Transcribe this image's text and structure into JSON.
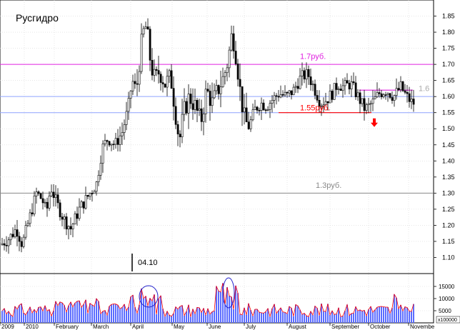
{
  "chart_data": [
    {
      "type": "candlestick",
      "title": "Русгидро",
      "ylim": [
        1.05,
        1.9
      ],
      "yticks": [
        "1.10",
        "1.15",
        "1.20",
        "1.25",
        "1.30",
        "1.35",
        "1.40",
        "1.45",
        "1.50",
        "1.55",
        "1.60",
        "1.65",
        "1.70",
        "1.75",
        "1.80",
        "1.85"
      ],
      "ytick_values": [
        1.1,
        1.15,
        1.2,
        1.25,
        1.3,
        1.35,
        1.4,
        1.45,
        1.5,
        1.55,
        1.6,
        1.65,
        1.7,
        1.75,
        1.8,
        1.85
      ],
      "grid": true,
      "price_path": [
        {
          "t": 0,
          "v": 1.14
        },
        {
          "t": 12,
          "v": 1.16
        },
        {
          "t": 22,
          "v": 1.19
        },
        {
          "t": 30,
          "v": 1.14
        },
        {
          "t": 40,
          "v": 1.22
        },
        {
          "t": 50,
          "v": 1.3
        },
        {
          "t": 58,
          "v": 1.28
        },
        {
          "t": 64,
          "v": 1.24
        },
        {
          "t": 70,
          "v": 1.32
        },
        {
          "t": 78,
          "v": 1.27
        },
        {
          "t": 88,
          "v": 1.22
        },
        {
          "t": 98,
          "v": 1.19
        },
        {
          "t": 110,
          "v": 1.25
        },
        {
          "t": 122,
          "v": 1.29
        },
        {
          "t": 134,
          "v": 1.33
        },
        {
          "t": 142,
          "v": 1.44
        },
        {
          "t": 150,
          "v": 1.47
        },
        {
          "t": 160,
          "v": 1.45
        },
        {
          "t": 170,
          "v": 1.49
        },
        {
          "t": 178,
          "v": 1.56
        },
        {
          "t": 184,
          "v": 1.65
        },
        {
          "t": 190,
          "v": 1.62
        },
        {
          "t": 196,
          "v": 1.75
        },
        {
          "t": 200,
          "v": 1.8
        },
        {
          "t": 204,
          "v": 1.82
        },
        {
          "t": 210,
          "v": 1.7
        },
        {
          "t": 216,
          "v": 1.65
        },
        {
          "t": 222,
          "v": 1.68
        },
        {
          "t": 230,
          "v": 1.64
        },
        {
          "t": 238,
          "v": 1.66
        },
        {
          "t": 244,
          "v": 1.56
        },
        {
          "t": 250,
          "v": 1.46
        },
        {
          "t": 256,
          "v": 1.55
        },
        {
          "t": 264,
          "v": 1.6
        },
        {
          "t": 272,
          "v": 1.57
        },
        {
          "t": 280,
          "v": 1.52
        },
        {
          "t": 288,
          "v": 1.62
        },
        {
          "t": 296,
          "v": 1.58
        },
        {
          "t": 304,
          "v": 1.62
        },
        {
          "t": 312,
          "v": 1.66
        },
        {
          "t": 318,
          "v": 1.71
        },
        {
          "t": 324,
          "v": 1.8
        },
        {
          "t": 330,
          "v": 1.72
        },
        {
          "t": 336,
          "v": 1.6
        },
        {
          "t": 342,
          "v": 1.52
        },
        {
          "t": 348,
          "v": 1.51
        },
        {
          "t": 356,
          "v": 1.56
        },
        {
          "t": 364,
          "v": 1.58
        },
        {
          "t": 372,
          "v": 1.57
        },
        {
          "t": 380,
          "v": 1.59
        },
        {
          "t": 390,
          "v": 1.61
        },
        {
          "t": 400,
          "v": 1.6
        },
        {
          "t": 410,
          "v": 1.62
        },
        {
          "t": 420,
          "v": 1.66
        },
        {
          "t": 430,
          "v": 1.67
        },
        {
          "t": 440,
          "v": 1.62
        },
        {
          "t": 448,
          "v": 1.58
        },
        {
          "t": 456,
          "v": 1.59
        },
        {
          "t": 464,
          "v": 1.61
        },
        {
          "t": 472,
          "v": 1.64
        },
        {
          "t": 480,
          "v": 1.63
        },
        {
          "t": 490,
          "v": 1.64
        },
        {
          "t": 500,
          "v": 1.6
        },
        {
          "t": 510,
          "v": 1.56
        },
        {
          "t": 520,
          "v": 1.58
        },
        {
          "t": 530,
          "v": 1.61
        },
        {
          "t": 540,
          "v": 1.62
        },
        {
          "t": 550,
          "v": 1.6
        },
        {
          "t": 560,
          "v": 1.63
        },
        {
          "t": 568,
          "v": 1.6
        },
        {
          "t": 576,
          "v": 1.58
        }
      ],
      "hlines": [
        {
          "y": 1.7,
          "color": "#e020e0",
          "style": "solid"
        },
        {
          "y": 1.6,
          "color": "#8fa4ff",
          "style": "solid"
        },
        {
          "y": 1.55,
          "color": "#8fa4ff",
          "style": "solid"
        },
        {
          "y": 1.3,
          "color": "#888888",
          "style": "solid"
        }
      ],
      "segments": [
        {
          "y": 1.62,
          "from": 503,
          "to": 578,
          "color": "#e020e0"
        },
        {
          "y": 1.55,
          "from": 390,
          "to": 520,
          "color": "#ff0000"
        }
      ],
      "annotations": [
        {
          "text": "1.7руб.",
          "y": 1.71,
          "x": 420,
          "color": "#e020e0"
        },
        {
          "text": "1.6",
          "y": 1.61,
          "x": 586,
          "color": "#aaaaaa"
        },
        {
          "text": "1.55руб.",
          "y": 1.55,
          "x": 420,
          "color": "#ff0000"
        },
        {
          "text": "1.3руб.",
          "y": 1.31,
          "x": 442,
          "color": "#888888"
        }
      ],
      "marker_label": "04.10",
      "down_arrow": {
        "x": 524,
        "y": 1.51
      }
    },
    {
      "type": "bar",
      "yticks": [
        "5000",
        "10000",
        "15000"
      ],
      "ytick_values": [
        5000,
        10000,
        15000
      ],
      "ylim": [
        0,
        20000
      ],
      "unit_label": "x100000",
      "months": [
        "2009",
        "2010",
        "February",
        "March",
        "April",
        "May",
        "June",
        "July",
        "August",
        "September",
        "October",
        "Novembe"
      ]
    }
  ],
  "colors": {
    "volume_bar": "#5b6cff",
    "volume_outline": "#ff0000",
    "ellipse": "#2222cc"
  }
}
